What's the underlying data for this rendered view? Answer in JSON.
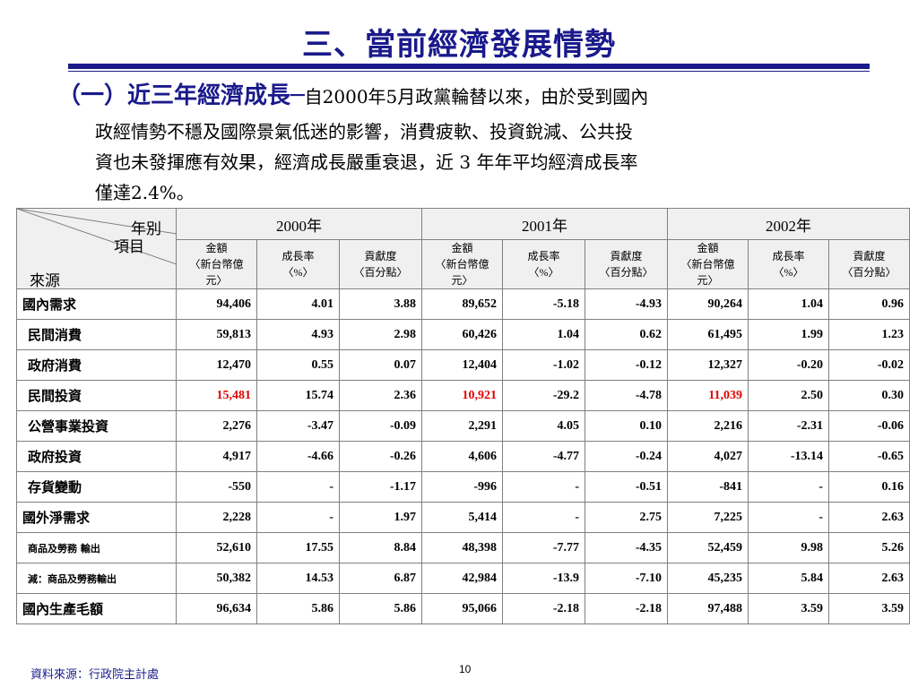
{
  "page": {
    "title": "三、當前經濟發展情勢",
    "intro_head": "（一）近三年經濟成長─",
    "intro_line1": "自2000年5月政黨輪替以來，由於受到國內",
    "intro_line2": "政經情勢不穩及國際景氣低迷的影響，消費疲軟、投資銳減、公共投",
    "intro_line3": "資也未發揮應有效果，經濟成長嚴重衰退，近 3 年年平均經濟成長率",
    "intro_line4": "僅達2.4%。",
    "source": "資料來源：行政院主計處",
    "page_number": "10"
  },
  "table": {
    "corner_year": "年別",
    "corner_item": "項目",
    "corner_source": "來源",
    "years": [
      "2000年",
      "2001年",
      "2002年"
    ],
    "sub_headers": [
      {
        "line1": "金額",
        "line2": "〈新台幣億元〉"
      },
      {
        "line1": "成長率",
        "line2": "〈%〉"
      },
      {
        "line1": "貢獻度",
        "line2": "〈百分點〉"
      },
      {
        "line1": "金額",
        "line2": "〈新台幣億元〉"
      },
      {
        "line1": "成長率",
        "line2": "〈%〉"
      },
      {
        "line1": "貢獻度",
        "line2": "〈百分點〉"
      },
      {
        "line1": "金額",
        "line2": "〈新台幣億元〉"
      },
      {
        "line1": "成長率",
        "line2": "〈%〉"
      },
      {
        "line1": "貢獻度",
        "line2": "〈百分點〉"
      }
    ],
    "rows": [
      {
        "label": "國內需求",
        "values": [
          "94,406",
          "4.01",
          "3.88",
          "89,652",
          "-5.18",
          "-4.93",
          "90,264",
          "1.04",
          "0.96"
        ]
      },
      {
        "label": "民間消費",
        "values": [
          "59,813",
          "4.93",
          "2.98",
          "60,426",
          "1.04",
          "0.62",
          "61,495",
          "1.99",
          "1.23"
        ]
      },
      {
        "label": "政府消費",
        "values": [
          "12,470",
          "0.55",
          "0.07",
          "12,404",
          "-1.02",
          "-0.12",
          "12,327",
          "-0.20",
          "-0.02"
        ]
      },
      {
        "label": "民間投資",
        "values": [
          "15,481",
          "15.74",
          "2.36",
          "10,921",
          "-29.2",
          "-4.78",
          "11,039",
          "2.50",
          "0.30"
        ]
      },
      {
        "label": "公營事業投資",
        "values": [
          "2,276",
          "-3.47",
          "-0.09",
          "2,291",
          "4.05",
          "0.10",
          "2,216",
          "-2.31",
          "-0.06"
        ]
      },
      {
        "label": "政府投資",
        "values": [
          "4,917",
          "-4.66",
          "-0.26",
          "4,606",
          "-4.77",
          "-0.24",
          "4,027",
          "-13.14",
          "-0.65"
        ]
      },
      {
        "label": "存貨變動",
        "values": [
          "-550",
          "-",
          "-1.17",
          "-996",
          "-",
          "-0.51",
          "-841",
          "-",
          "0.16"
        ]
      },
      {
        "label": "國外淨需求",
        "values": [
          "2,228",
          "-",
          "1.97",
          "5,414",
          "-",
          "2.75",
          "7,225",
          "-",
          "2.63"
        ]
      },
      {
        "label": "商品及勞務 輸出",
        "values": [
          "52,610",
          "17.55",
          "8.84",
          "48,398",
          "-7.77",
          "-4.35",
          "52,459",
          "9.98",
          "5.26"
        ]
      },
      {
        "label": "減：商品及勞務輸出",
        "values": [
          "50,382",
          "14.53",
          "6.87",
          "42,984",
          "-13.9",
          "-7.10",
          "45,235",
          "5.84",
          "2.63"
        ]
      },
      {
        "label": "國內生產毛額",
        "values": [
          "96,634",
          "5.86",
          "5.86",
          "95,066",
          "-2.18",
          "-2.18",
          "97,488",
          "3.59",
          "3.59"
        ]
      }
    ],
    "highlight_color": "#e00000"
  }
}
